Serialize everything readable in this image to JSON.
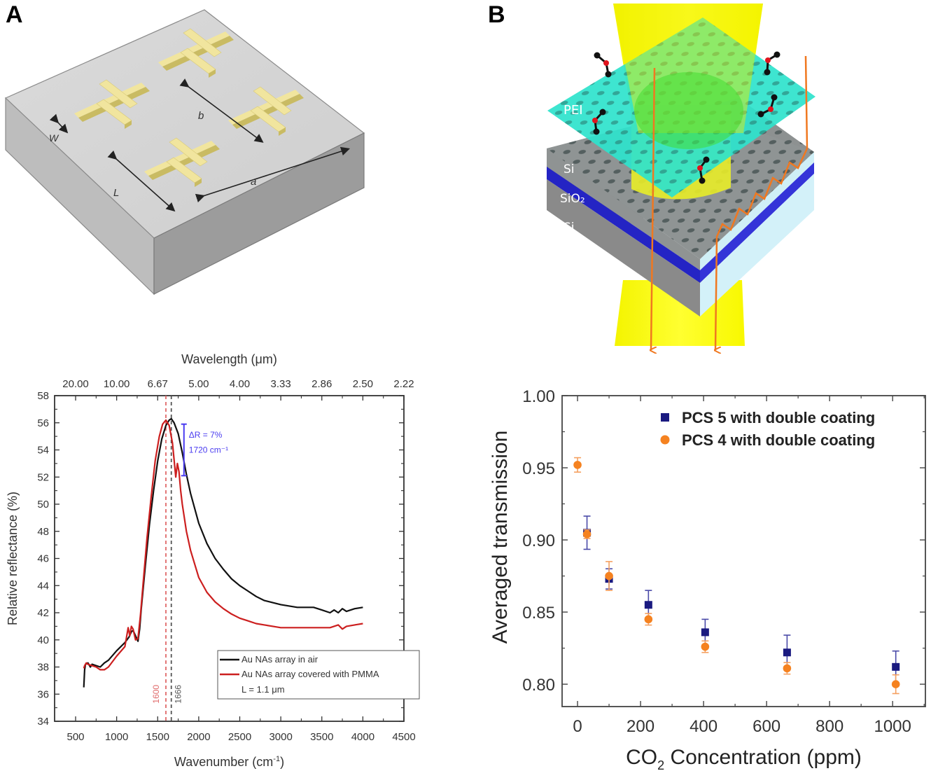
{
  "figure": {
    "panel_a_label": "A",
    "panel_b_label": "B"
  },
  "illustration_a": {
    "description": "Gold cross-shaped nanoantenna array on substrate",
    "labels": {
      "width": "W",
      "length": "L",
      "period_a": "a",
      "period_b": "b"
    },
    "colors": {
      "substrate_top": "#d4d4d4",
      "substrate_side_left": "#c2c2c2",
      "substrate_side_front": "#9a9a9a",
      "cross": "#efe39a",
      "cross_edge": "#cdbf67"
    }
  },
  "illustration_b": {
    "description": "Photonic crystal slab with PEI coating and CO2 molecules, light beam transmission",
    "labels": {
      "coating": "PEI",
      "top_layer": "Si",
      "middle_layer": "SiO₂",
      "bottom_layer": "Si"
    },
    "colors": {
      "pei": "#29e0c8",
      "si": "#8c8c8c",
      "sio2": "#2a2acc",
      "beam": "#ffff00",
      "ray": "#f07820",
      "molecule_o": "#e0141e"
    }
  },
  "chart_data": [
    {
      "type": "line",
      "title": "",
      "xlabel": "Wavenumber (cm⁻¹)",
      "xlabel_base": "Wavenumber (cm",
      "xlabel_sup": "-1",
      "xlabel_close": ")",
      "ylabel": "Relative reflectance (%)",
      "top_xlabel": "Wavelength (μm)",
      "xlim": [
        244,
        4500
      ],
      "ylim": [
        34,
        58
      ],
      "xticks": [
        500,
        1000,
        1500,
        2000,
        2500,
        3000,
        3500,
        4000,
        4500
      ],
      "xtick_labels": [
        "500",
        "1000",
        "1500",
        "2000",
        "2500",
        "3000",
        "3500",
        "4000",
        "4500"
      ],
      "yticks": [
        34,
        36,
        38,
        40,
        42,
        44,
        46,
        48,
        50,
        52,
        54,
        56,
        58
      ],
      "ytick_labels": [
        "34",
        "36",
        "38",
        "40",
        "42",
        "44",
        "46",
        "48",
        "50",
        "52",
        "54",
        "56",
        "58"
      ],
      "top_xticks": [
        500,
        1000,
        1500,
        2000,
        2500,
        3000,
        3500,
        4000,
        4500
      ],
      "top_xtick_labels": [
        "20.00",
        "10.00",
        "6.67",
        "5.00",
        "4.00",
        "3.33",
        "2.86",
        "2.50",
        "2.22"
      ],
      "series": [
        {
          "name": "Au NAs array in air",
          "color": "#111111",
          "x": [
            600,
            610,
            620,
            650,
            680,
            700,
            750,
            800,
            850,
            900,
            1000,
            1100,
            1150,
            1180,
            1200,
            1230,
            1260,
            1280,
            1300,
            1350,
            1400,
            1450,
            1500,
            1550,
            1600,
            1640,
            1666,
            1700,
            1750,
            1800,
            1850,
            1900,
            2000,
            2100,
            2200,
            2300,
            2400,
            2500,
            2600,
            2700,
            2800,
            3000,
            3200,
            3400,
            3500,
            3600,
            3650,
            3700,
            3750,
            3800,
            3900,
            4000
          ],
          "y": [
            36.5,
            37.8,
            38.2,
            38.3,
            38.0,
            38.2,
            38.1,
            38.0,
            38.3,
            38.5,
            39.2,
            39.8,
            40.2,
            40.6,
            40.7,
            40.3,
            39.9,
            40.8,
            42.3,
            45.5,
            48.5,
            51.0,
            53.2,
            54.8,
            55.8,
            56.2,
            56.3,
            56.0,
            55.2,
            53.8,
            52.2,
            50.8,
            48.6,
            47.1,
            46.0,
            45.2,
            44.5,
            44.0,
            43.6,
            43.2,
            42.9,
            42.6,
            42.4,
            42.4,
            42.2,
            42.0,
            42.2,
            42.0,
            42.3,
            42.1,
            42.3,
            42.4
          ]
        },
        {
          "name": "Au NAs array covered with PMMA",
          "color": "#cc1f1f",
          "x": [
            600,
            610,
            630,
            650,
            700,
            750,
            800,
            850,
            900,
            1000,
            1100,
            1140,
            1160,
            1180,
            1200,
            1230,
            1260,
            1290,
            1320,
            1370,
            1420,
            1470,
            1520,
            1560,
            1600,
            1640,
            1680,
            1720,
            1740,
            1760,
            1780,
            1800,
            1850,
            1900,
            2000,
            2100,
            2200,
            2300,
            2400,
            2500,
            2600,
            2700,
            2800,
            3000,
            3200,
            3400,
            3600,
            3700,
            3750,
            3800,
            3900,
            4000
          ],
          "y": [
            37.9,
            38.1,
            38.3,
            38.2,
            38.1,
            38.0,
            37.8,
            37.8,
            38.0,
            38.8,
            39.5,
            40.9,
            40.3,
            41.0,
            40.8,
            40.0,
            40.1,
            41.8,
            44.0,
            47.5,
            50.5,
            53.2,
            55.0,
            55.9,
            56.2,
            55.8,
            54.5,
            52.0,
            53.0,
            52.4,
            51.0,
            50.0,
            48.0,
            46.6,
            44.6,
            43.5,
            42.8,
            42.3,
            41.9,
            41.6,
            41.4,
            41.2,
            41.1,
            40.9,
            40.9,
            40.9,
            40.9,
            41.1,
            40.8,
            41.0,
            41.1,
            41.2
          ]
        }
      ],
      "vlines": [
        {
          "x": 1600,
          "label": "1600",
          "color": "#e06a6a"
        },
        {
          "x": 1666,
          "label": "1666",
          "color": "#555555"
        }
      ],
      "annotation": {
        "line1": "ΔR = 7%",
        "line2": "1720 cm⁻¹",
        "color": "#4a3cf0",
        "bar_x": 1820,
        "bar_y": [
          52.1,
          55.9
        ]
      },
      "legend": {
        "placement": "bottom-right",
        "entries": [
          "Au NAs array in air",
          "Au NAs array covered with PMMA"
        ],
        "note": "L = 1.1 μm"
      },
      "grid": false
    },
    {
      "type": "scatter",
      "title": "",
      "xlabel": "CO₂ Concentration (ppm)",
      "xlabel_a": "CO",
      "xlabel_sub": "2",
      "xlabel_b": " Concentration (ppm)",
      "ylabel": "Averaged transmission",
      "xlim": [
        -49,
        1104
      ],
      "ylim": [
        0.7845,
        1.0
      ],
      "xticks": [
        0,
        200,
        400,
        600,
        800,
        1000
      ],
      "xtick_labels": [
        "0",
        "200",
        "400",
        "600",
        "800",
        "1000"
      ],
      "yticks": [
        0.8,
        0.85,
        0.9,
        0.95,
        1.0
      ],
      "ytick_labels": [
        "0.80",
        "0.85",
        "0.90",
        "0.95",
        "1.00"
      ],
      "series": [
        {
          "name": "PCS 5 with double coating",
          "marker": "square",
          "color": "#1a1a80",
          "x": [
            30,
            100,
            225,
            405,
            665,
            1010
          ],
          "y": [
            0.905,
            0.873,
            0.855,
            0.836,
            0.822,
            0.812
          ],
          "err": [
            0.0115,
            0.007,
            0.01,
            0.009,
            0.012,
            0.011
          ]
        },
        {
          "name": "PCS 4 with double coating",
          "marker": "circle",
          "color": "#f58220",
          "x": [
            0,
            30,
            100,
            225,
            405,
            665,
            1010
          ],
          "y": [
            0.952,
            0.904,
            0.875,
            0.845,
            0.826,
            0.811,
            0.8
          ],
          "err": [
            0.005,
            0.003,
            0.01,
            0.004,
            0.004,
            0.004,
            0.0065
          ]
        }
      ],
      "legend": {
        "placement": "top-right",
        "entries": [
          "PCS 5 with double coating",
          "PCS 4 with double coating"
        ]
      },
      "grid": false
    }
  ]
}
